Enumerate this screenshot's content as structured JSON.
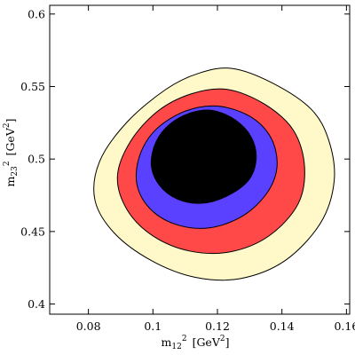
{
  "chart_data": {
    "type": "contour",
    "title": "",
    "xlabel": {
      "base": "m",
      "sub": "12",
      "sup": "2",
      "unit_open": "[GeV",
      "unit_sup": "2",
      "unit_close": "]"
    },
    "ylabel": {
      "base": "m",
      "sub": "23",
      "sup": "2",
      "unit_open": "[GeV",
      "unit_sup": "2",
      "unit_close": "]"
    },
    "xlim": [
      0.068,
      0.161
    ],
    "ylim": [
      0.393,
      0.606
    ],
    "x_ticks": [
      {
        "value": 0.08,
        "label": "0.08"
      },
      {
        "value": 0.1,
        "label": "0.1"
      },
      {
        "value": 0.12,
        "label": "0.12"
      },
      {
        "value": 0.14,
        "label": "0.14"
      },
      {
        "value": 0.16,
        "label": "0.16"
      }
    ],
    "y_ticks": [
      {
        "value": 0.4,
        "label": "0.4"
      },
      {
        "value": 0.45,
        "label": "0.45"
      },
      {
        "value": 0.5,
        "label": "0.5"
      },
      {
        "value": 0.55,
        "label": "0.55"
      },
      {
        "value": 0.6,
        "label": "0.6"
      }
    ],
    "grid": false,
    "regions": [
      {
        "name": "",
        "color": "#fff8c8",
        "boundary": [
          [
            0.1245,
            0.5625
          ],
          [
            0.137,
            0.5525
          ],
          [
            0.149,
            0.5345
          ],
          [
            0.1545,
            0.513
          ],
          [
            0.1562,
            0.485
          ],
          [
            0.152,
            0.456
          ],
          [
            0.141,
            0.43
          ],
          [
            0.127,
            0.4175
          ],
          [
            0.113,
            0.4185
          ],
          [
            0.0995,
            0.43
          ],
          [
            0.088,
            0.449
          ],
          [
            0.082,
            0.472
          ],
          [
            0.0835,
            0.4985
          ],
          [
            0.092,
            0.5255
          ],
          [
            0.104,
            0.548
          ],
          [
            0.114,
            0.559
          ]
        ]
      },
      {
        "name": "",
        "color": "#ff4848",
        "boundary": [
          [
            0.123,
            0.548
          ],
          [
            0.1345,
            0.538
          ],
          [
            0.1435,
            0.52
          ],
          [
            0.147,
            0.495
          ],
          [
            0.145,
            0.469
          ],
          [
            0.136,
            0.447
          ],
          [
            0.124,
            0.436
          ],
          [
            0.1115,
            0.4365
          ],
          [
            0.1,
            0.447
          ],
          [
            0.092,
            0.465
          ],
          [
            0.089,
            0.488
          ],
          [
            0.093,
            0.512
          ],
          [
            0.1015,
            0.533
          ],
          [
            0.112,
            0.545
          ]
        ]
      },
      {
        "name": "",
        "color": "#5a40ff",
        "boundary": [
          [
            0.12,
            0.5365
          ],
          [
            0.13,
            0.5295
          ],
          [
            0.1365,
            0.515
          ],
          [
            0.1385,
            0.4955
          ],
          [
            0.1355,
            0.477
          ],
          [
            0.128,
            0.461
          ],
          [
            0.1175,
            0.4525
          ],
          [
            0.107,
            0.455
          ],
          [
            0.099,
            0.466
          ],
          [
            0.095,
            0.483
          ],
          [
            0.096,
            0.503
          ],
          [
            0.101,
            0.5205
          ],
          [
            0.11,
            0.533
          ]
        ]
      },
      {
        "name": "",
        "color": "#000000",
        "boundary": [
          [
            0.1185,
            0.5335
          ],
          [
            0.1255,
            0.527
          ],
          [
            0.1305,
            0.515
          ],
          [
            0.132,
            0.5
          ],
          [
            0.1295,
            0.485
          ],
          [
            0.1225,
            0.474
          ],
          [
            0.115,
            0.4695
          ],
          [
            0.1075,
            0.4725
          ],
          [
            0.102,
            0.482
          ],
          [
            0.0995,
            0.496
          ],
          [
            0.101,
            0.512
          ],
          [
            0.1055,
            0.5245
          ],
          [
            0.112,
            0.532
          ]
        ]
      }
    ]
  }
}
